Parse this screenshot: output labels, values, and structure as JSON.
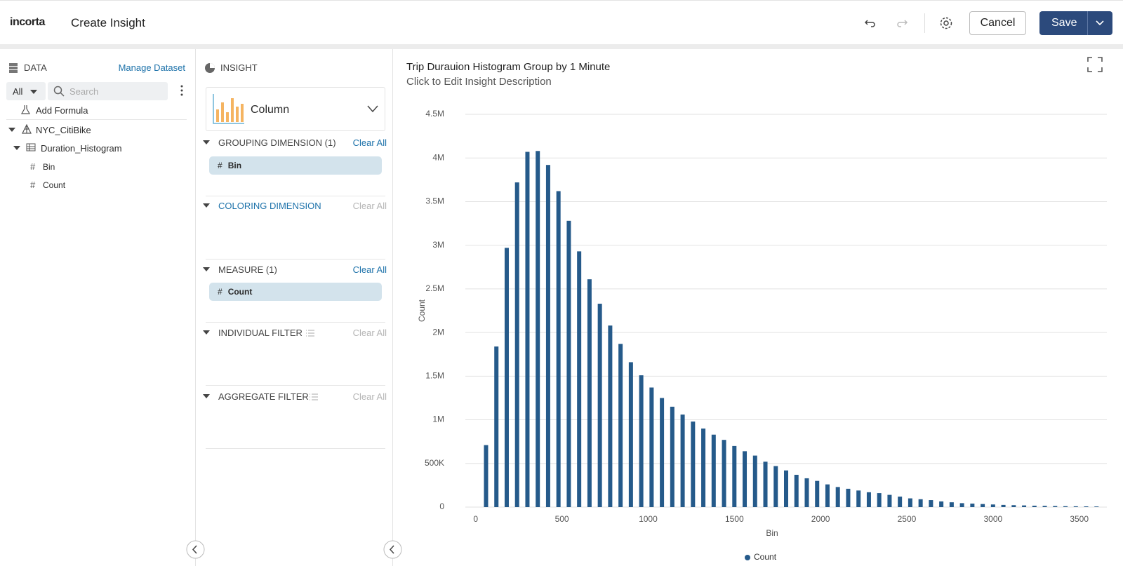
{
  "header": {
    "logo": "incorta",
    "title": "Create Insight",
    "cancel": "Cancel",
    "save": "Save"
  },
  "data_panel": {
    "title": "DATA",
    "manage": "Manage Dataset",
    "filter": "All",
    "search_placeholder": "Search",
    "add_formula": "Add Formula",
    "tree": [
      {
        "label": "NYC_CitiBike"
      },
      {
        "label": "Duration_Histogram"
      },
      {
        "label": "Bin"
      },
      {
        "label": "Count"
      }
    ]
  },
  "insight_panel": {
    "title": "INSIGHT",
    "chart_type": "Column",
    "sections": [
      {
        "title": "GROUPING DIMENSION (1)",
        "action": "Clear All",
        "pills": [
          "Bin"
        ]
      },
      {
        "title": "COLORING DIMENSION",
        "action": "Clear All"
      },
      {
        "title": "MEASURE (1)",
        "action": "Clear All",
        "pills": [
          "Count"
        ]
      },
      {
        "title": "INDIVIDUAL FILTER",
        "action": "Clear All"
      },
      {
        "title": "AGGREGATE FILTER",
        "action": "Clear All"
      }
    ]
  },
  "chart_header": {
    "title": "Trip Durauion Histogram Group by 1 Minute",
    "description": "Click to Edit Insight Description"
  },
  "chart_data": {
    "type": "bar",
    "x_label": "Bin",
    "y_label": "Count",
    "x": [
      60,
      120,
      180,
      240,
      300,
      360,
      420,
      480,
      540,
      600,
      660,
      720,
      780,
      840,
      900,
      960,
      1020,
      1080,
      1140,
      1200,
      1260,
      1320,
      1380,
      1440,
      1500,
      1560,
      1620,
      1680,
      1740,
      1800,
      1860,
      1920,
      1980,
      2040,
      2100,
      2160,
      2220,
      2280,
      2340,
      2400,
      2460,
      2520,
      2580,
      2640,
      2700,
      2760,
      2820,
      2880,
      2940,
      3000,
      3060,
      3120,
      3180,
      3240,
      3300,
      3360,
      3420,
      3480,
      3540,
      3600
    ],
    "series": [
      {
        "name": "Count",
        "color": "#255a8a",
        "values": [
          710000,
          1840000,
          2970000,
          3720000,
          4070000,
          4080000,
          3920000,
          3620000,
          3280000,
          2930000,
          2610000,
          2330000,
          2080000,
          1870000,
          1660000,
          1510000,
          1370000,
          1250000,
          1150000,
          1060000,
          980000,
          900000,
          830000,
          770000,
          700000,
          640000,
          590000,
          520000,
          470000,
          420000,
          370000,
          330000,
          300000,
          260000,
          230000,
          210000,
          190000,
          170000,
          160000,
          140000,
          120000,
          100000,
          90000,
          80000,
          65000,
          55000,
          45000,
          40000,
          35000,
          30000,
          25000,
          22000,
          19000,
          16000,
          14000,
          12000,
          10000,
          9000,
          8000,
          7000
        ]
      }
    ],
    "xlim": [
      -60,
      3660
    ],
    "ylim": [
      0,
      4500000
    ],
    "xticks": [
      0,
      500,
      1000,
      1500,
      2000,
      2500,
      3000,
      3500
    ],
    "yticks": [
      0,
      {
        "value": 500000,
        "label": "500K"
      },
      {
        "value": 1000000,
        "label": "1M"
      },
      {
        "value": 1500000,
        "label": "1.5M"
      },
      {
        "value": 2000000,
        "label": "2M"
      },
      {
        "value": 2500000,
        "label": "2.5M"
      },
      {
        "value": 3000000,
        "label": "3M"
      },
      {
        "value": 3500000,
        "label": "3.5M"
      },
      {
        "value": 4000000,
        "label": "4M"
      },
      {
        "value": 4500000,
        "label": "4.5M"
      }
    ],
    "grid": true,
    "legend": "bottom"
  }
}
